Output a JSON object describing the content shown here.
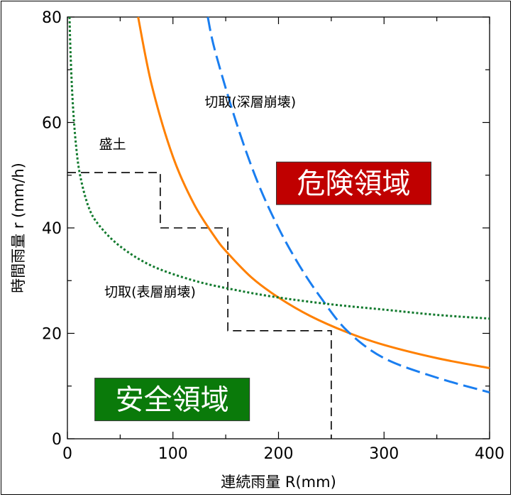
{
  "chart_data": {
    "type": "line",
    "xlabel": "連続雨量 R(mm)",
    "ylabel": "時間雨量 r (mm/h)",
    "xlim": [
      0,
      400
    ],
    "ylim": [
      0,
      80
    ],
    "x_ticks": [
      "0",
      "100",
      "200",
      "300",
      "400"
    ],
    "y_ticks": [
      "0",
      "20",
      "40",
      "60",
      "80"
    ],
    "grid": false,
    "series": [
      {
        "name": "盛土",
        "color": "#ff8000",
        "style": "solid",
        "x": [
          67,
          80,
          100,
          120,
          140,
          152,
          175,
          200,
          230,
          265,
          300,
          350,
          400
        ],
        "y": [
          80,
          67,
          53.5,
          44.5,
          38.2,
          35.2,
          30.5,
          26.8,
          23.3,
          20.2,
          17.8,
          15.3,
          13.4
        ]
      },
      {
        "name": "切取(深層崩壊)",
        "color": "#1a7ef0",
        "style": "dashed",
        "x": [
          133,
          140,
          160,
          180,
          200,
          220,
          240,
          265,
          300,
          350,
          400
        ],
        "y": [
          80,
          73.5,
          60,
          48.8,
          40,
          32.8,
          26.8,
          20.5,
          15.3,
          11.6,
          8.8
        ]
      },
      {
        "name": "切取(表層崩壊)",
        "color": "#127a2e",
        "style": "dotted",
        "x": [
          2,
          3,
          5,
          8,
          12,
          20,
          30,
          50,
          80,
          120,
          160,
          200,
          250,
          300,
          350,
          400
        ],
        "y": [
          80,
          73,
          64,
          56,
          50,
          44,
          40.5,
          36.5,
          32.8,
          30,
          28.2,
          26.8,
          25.5,
          24.5,
          23.5,
          22.8
        ]
      }
    ],
    "threshold_step": {
      "color": "#000000",
      "style": "dashed",
      "x": [
        0,
        88,
        88,
        152,
        152,
        250,
        250
      ],
      "y": [
        50.5,
        50.5,
        40,
        40,
        20.5,
        20.5,
        0
      ]
    },
    "annotations": [
      {
        "text": "切取(深層崩壊)",
        "x": 130,
        "y": 63
      },
      {
        "text": "盛土",
        "x": 30,
        "y": 55
      },
      {
        "text": "切取(表層崩壊)",
        "x": 35,
        "y": 27
      }
    ],
    "regions": [
      {
        "text": "危険領域",
        "background": "#c00000",
        "color": "#ffffff",
        "x": 198,
        "y": 52.5
      },
      {
        "text": "安全領域",
        "background": "#0a7a0a",
        "color": "#ffffff",
        "x": 26,
        "y": 11.5
      }
    ]
  }
}
